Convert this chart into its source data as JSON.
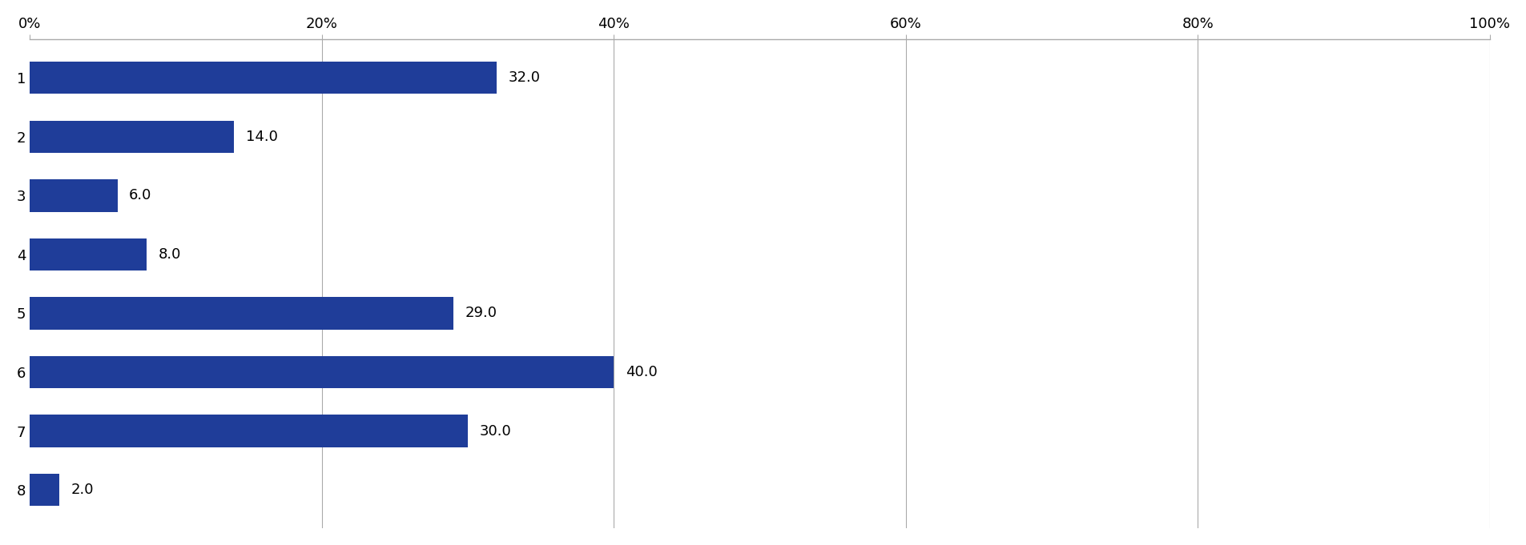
{
  "categories": [
    "1",
    "2",
    "3",
    "4",
    "5",
    "6",
    "7",
    "8"
  ],
  "values": [
    32.0,
    14.0,
    6.0,
    8.0,
    29.0,
    40.0,
    30.0,
    2.0
  ],
  "bar_color": "#1F3D99",
  "xlim": [
    0,
    100
  ],
  "xtick_labels": [
    "0%",
    "20%",
    "40%",
    "60%",
    "80%",
    "100%"
  ],
  "xtick_values": [
    0,
    20,
    40,
    60,
    80,
    100
  ],
  "bar_height": 0.55,
  "label_fontsize": 13,
  "tick_fontsize": 13,
  "background_color": "#ffffff",
  "border_color": "#aaaaaa"
}
